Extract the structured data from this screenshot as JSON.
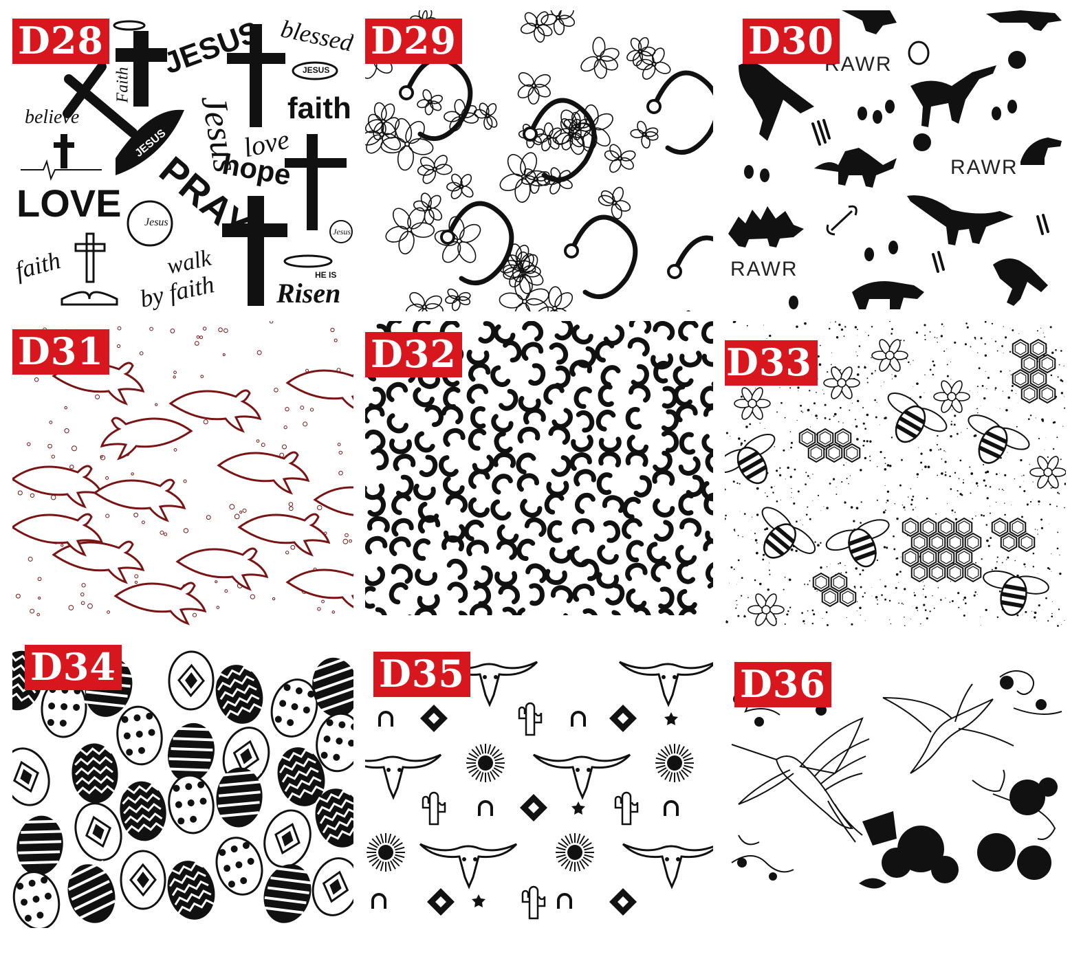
{
  "tiles": [
    {
      "label": "D28",
      "theme": "faith-words"
    },
    {
      "label": "D29",
      "theme": "floral-stethoscope"
    },
    {
      "label": "D30",
      "theme": "dinosaur"
    },
    {
      "label": "D31",
      "theme": "dolphin"
    },
    {
      "label": "D32",
      "theme": "leopard-print"
    },
    {
      "label": "D33",
      "theme": "bee-honeycomb"
    },
    {
      "label": "D34",
      "theme": "easter-eggs"
    },
    {
      "label": "D35",
      "theme": "western-longhorn"
    },
    {
      "label": "D36",
      "theme": "hummingbird"
    }
  ],
  "d28_words": {
    "jesus": "JESUS",
    "blessed": "blessed",
    "faith_script": "Faith",
    "jesus_fish": "JESUS",
    "believe": "believe",
    "faith_bold": "faith",
    "jesus_script": "Jesus",
    "love_script": "love",
    "hope": "hope",
    "love_bold": "LOVE",
    "pray": "PRAY",
    "jesus_circle": "Jesus",
    "jesus_circle2": "Jesus",
    "faith_bottom": "faith",
    "walk": "walk",
    "by_faith": "by faith",
    "he_is": "HE IS",
    "risen": "Risen"
  },
  "d30_words": {
    "rawr1": "RAWR",
    "rawr2": "RAWR",
    "rawr3": "RAWR"
  },
  "colors": {
    "badge": "#d8161d",
    "ink": "#111111",
    "dolphin": "#7a1414"
  }
}
